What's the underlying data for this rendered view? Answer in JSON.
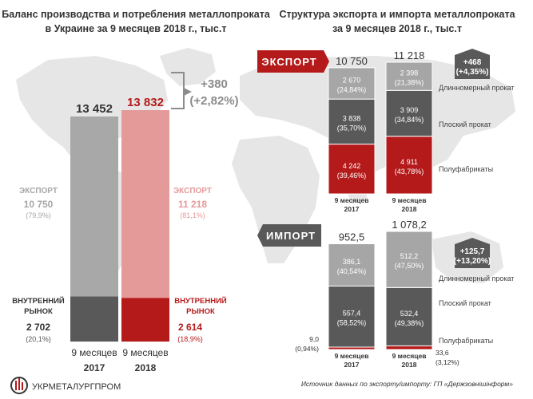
{
  "left_title": [
    "Баланс производства и потребления металлопроката",
    "в Украине за 9 месяцев 2018 г., тыс.т"
  ],
  "right_title": [
    "Структура экспорта и импорта металлопроката",
    "за 9 месяцев 2018 г., тыс.т"
  ],
  "export_tag": "ЭКСПОРТ",
  "import_tag": "ИМПОРТ",
  "source_note": "Источник данных по экспорту/импорту: ГП «Держзовнішінформ»",
  "logo_text": "УКРМЕТАЛУРГПРОМ",
  "colors": {
    "export_2017": "#a8a8a8",
    "domestic_2017": "#595959",
    "export_2018": "#e59a9a",
    "domestic_2018": "#b51a1a",
    "accent_red": "#b51a1a",
    "long": "#a6a6a6",
    "flat": "#595959",
    "semi": "#b51a1a",
    "map": "#e6e6e6"
  },
  "chart_data": [
    {
      "type": "bar",
      "title": "Баланс производства и потребления металлопроката в Украине за 9 месяцев 2018 г., тыс.т",
      "categories": [
        "9 месяцев 2017",
        "9 месяцев 2018"
      ],
      "totals": [
        "13 452",
        "13 832"
      ],
      "total_values": [
        13452,
        13832
      ],
      "series": [
        {
          "name": "ВНУТРЕННИЙ РЫНОК",
          "values": [
            2702,
            2614
          ],
          "labels": [
            "2 702",
            "2 614"
          ],
          "shares": [
            "(20,1%)",
            "(18,9%)"
          ]
        },
        {
          "name": "ЭКСПОРТ",
          "values": [
            10750,
            11218
          ],
          "labels": [
            "10 750",
            "11 218"
          ],
          "shares": [
            "(79,9%)",
            "(81,1%)"
          ]
        }
      ],
      "change": {
        "value": "+380",
        "percent": "(+2,82%)"
      }
    },
    {
      "type": "bar",
      "title": "ЭКСПОРТ",
      "categories": [
        "9 месяцев 2017",
        "9 месяцев 2018"
      ],
      "totals": [
        "10 750",
        "11 218"
      ],
      "total_values": [
        10750,
        11218
      ],
      "series": [
        {
          "name": "Полуфабрикаты",
          "values": [
            4242,
            4911
          ],
          "labels": [
            "4 242",
            "4 911"
          ],
          "shares": [
            "(39,46%)",
            "(43,78%)"
          ]
        },
        {
          "name": "Плоский прокат",
          "values": [
            3838,
            3909
          ],
          "labels": [
            "3 838",
            "3 909"
          ],
          "shares": [
            "(35,70%)",
            "(34,84%)"
          ]
        },
        {
          "name": "Длинномерный прокат",
          "values": [
            2670,
            2398
          ],
          "labels": [
            "2 670",
            "2 398"
          ],
          "shares": [
            "(24,84%)",
            "(21,38%)"
          ]
        }
      ],
      "change": {
        "value": "+468",
        "percent": "(+4,35%)"
      }
    },
    {
      "type": "bar",
      "title": "ИМПОРТ",
      "categories": [
        "9 месяцев 2017",
        "9 месяцев 2018"
      ],
      "totals": [
        "952,5",
        "1 078,2"
      ],
      "total_values": [
        952.5,
        1078.2
      ],
      "series": [
        {
          "name": "Полуфабрикаты",
          "values": [
            9.0,
            33.6
          ],
          "labels": [
            "9,0",
            "33,6"
          ],
          "shares": [
            "(0,94%)",
            "(3,12%)"
          ]
        },
        {
          "name": "Плоский прокат",
          "values": [
            557.4,
            532.4
          ],
          "labels": [
            "557,4",
            "532,4"
          ],
          "shares": [
            "(58,52%)",
            "(49,38%)"
          ]
        },
        {
          "name": "Длинномерный прокат",
          "values": [
            386.1,
            512.2
          ],
          "labels": [
            "386,1",
            "512,2"
          ],
          "shares": [
            "(40,54%)",
            "(47,50%)"
          ]
        }
      ],
      "change": {
        "value": "+125,7",
        "percent": "(+13,20%)"
      }
    }
  ]
}
